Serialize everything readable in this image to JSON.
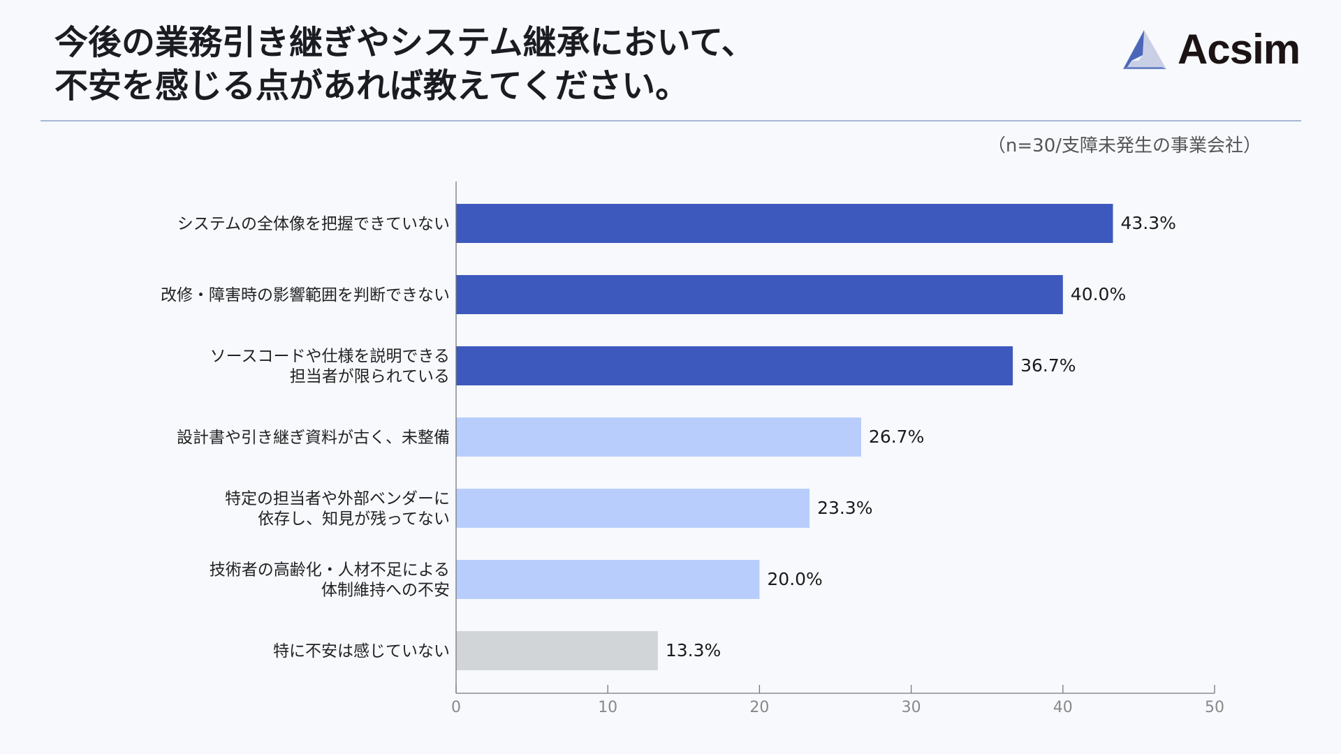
{
  "title": {
    "line1": "今後の業務引き継ぎやシステム継承において、",
    "line2": "不安を感じる点があれば教えてください。"
  },
  "logo": {
    "text": "Acsim",
    "icon": "triangle-logo-icon"
  },
  "subtitle": "（n=30/支障未発生の事業会社）",
  "chart_data": {
    "type": "bar",
    "orientation": "horizontal",
    "categories": [
      [
        "システムの全体像を把握できていない"
      ],
      [
        "改修・障害時の影響範囲を判断できない"
      ],
      [
        "ソースコードや仕様を説明できる",
        "担当者が限られている"
      ],
      [
        "設計書や引き継ぎ資料が古く、未整備"
      ],
      [
        "特定の担当者や外部ベンダーに",
        "依存し、知見が残ってない"
      ],
      [
        "技術者の高齢化・人材不足による",
        "体制維持への不安"
      ],
      [
        "特に不安は感じていない"
      ]
    ],
    "values": [
      43.3,
      40.0,
      36.7,
      26.7,
      23.3,
      20.0,
      13.3
    ],
    "value_labels": [
      "43.3%",
      "40.0%",
      "36.7%",
      "26.7%",
      "23.3%",
      "20.0%",
      "13.3%"
    ],
    "bar_colors": [
      "#3d59bd",
      "#3d59bd",
      "#3d59bd",
      "#b8cdfc",
      "#b8cdfc",
      "#b8cdfc",
      "#d2d5d8"
    ],
    "xlim": [
      0,
      50
    ],
    "xticks": [
      0,
      10,
      20,
      30,
      40,
      50
    ],
    "grid": false
  }
}
